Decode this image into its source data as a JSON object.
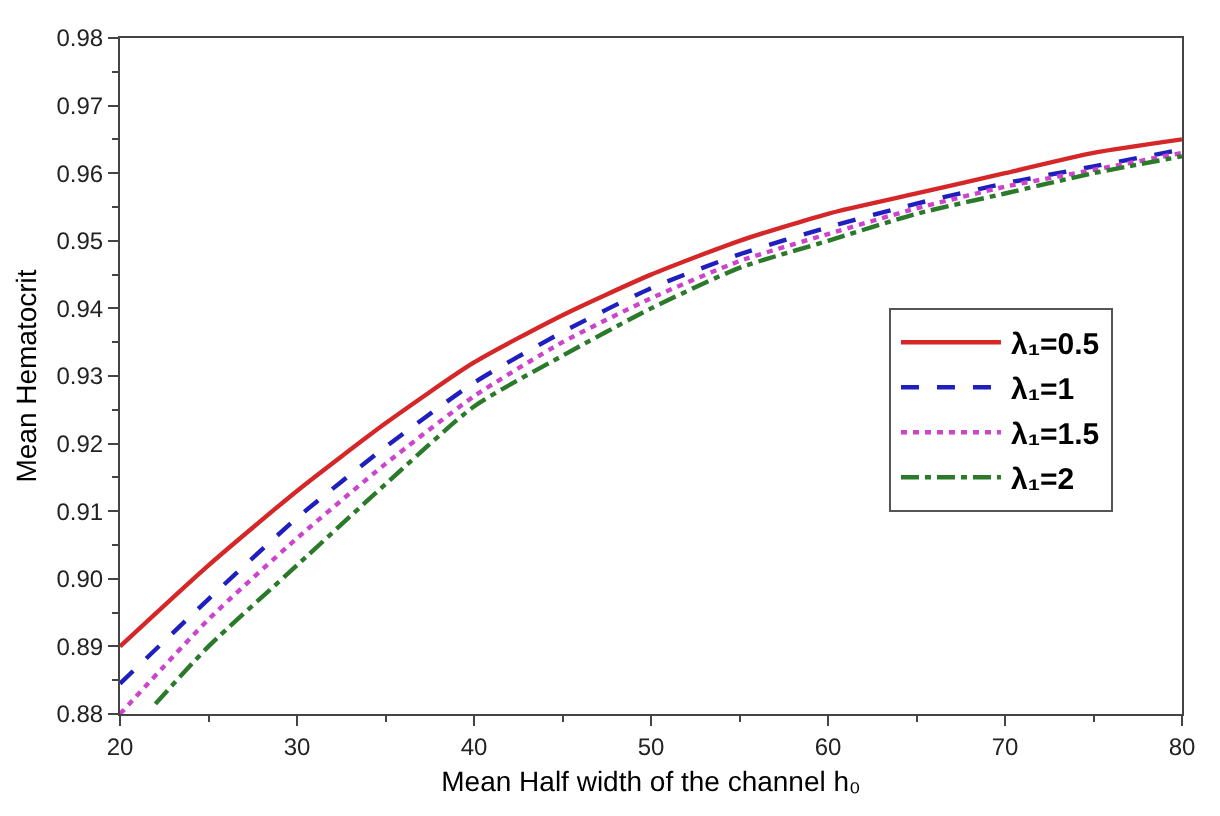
{
  "chart_data": {
    "type": "line",
    "xlabel": "Mean Half width of the channel h₀",
    "ylabel": "Mean Hematocrit",
    "x": [
      20,
      25,
      30,
      35,
      40,
      45,
      50,
      55,
      60,
      65,
      70,
      75,
      80
    ],
    "series": [
      {
        "name": "λ₁=0.5",
        "color": "#d62728",
        "line_style": "solid",
        "values": [
          0.89,
          0.902,
          0.913,
          0.923,
          0.932,
          0.939,
          0.945,
          0.95,
          0.954,
          0.957,
          0.96,
          0.963,
          0.965
        ]
      },
      {
        "name": "λ₁=1",
        "color": "#1f1fbf",
        "line_style": "dashed",
        "values": [
          0.8845,
          0.897,
          0.909,
          0.9195,
          0.929,
          0.9365,
          0.943,
          0.948,
          0.952,
          0.9555,
          0.9585,
          0.961,
          0.9635
        ]
      },
      {
        "name": "λ₁=1.5",
        "color": "#cc44cc",
        "line_style": "dotted",
        "values": [
          0.88,
          0.894,
          0.906,
          0.917,
          0.927,
          0.935,
          0.9415,
          0.947,
          0.951,
          0.9548,
          0.958,
          0.9605,
          0.963
        ]
      },
      {
        "name": "λ₁=2",
        "color": "#2a7a2a",
        "line_style": "dashdot",
        "x": [
          22,
          25,
          30,
          35,
          40,
          45,
          50,
          55,
          60,
          65,
          70,
          75,
          80
        ],
        "values": [
          0.8815,
          0.89,
          0.902,
          0.914,
          0.9255,
          0.933,
          0.94,
          0.946,
          0.95,
          0.954,
          0.957,
          0.96,
          0.9625
        ]
      }
    ],
    "xlim": [
      20,
      80
    ],
    "xticks": [
      20,
      30,
      40,
      50,
      60,
      70,
      80
    ],
    "ylim": [
      0.88,
      0.98
    ],
    "yticks": [
      {
        "value": 0.88,
        "label": "0.88"
      },
      {
        "value": 0.89,
        "label": "0.89"
      },
      {
        "value": 0.9,
        "label": "0.90"
      },
      {
        "value": 0.91,
        "label": "0.91"
      },
      {
        "value": 0.92,
        "label": "0.92"
      },
      {
        "value": 0.93,
        "label": "0.93"
      },
      {
        "value": 0.94,
        "label": "0.94"
      },
      {
        "value": 0.95,
        "label": "0.95"
      },
      {
        "value": 0.96,
        "label": "0.96"
      },
      {
        "value": 0.97,
        "label": "0.97"
      },
      {
        "value": 0.98,
        "label": "0.98"
      }
    ],
    "legend": "right",
    "marker": "none"
  }
}
